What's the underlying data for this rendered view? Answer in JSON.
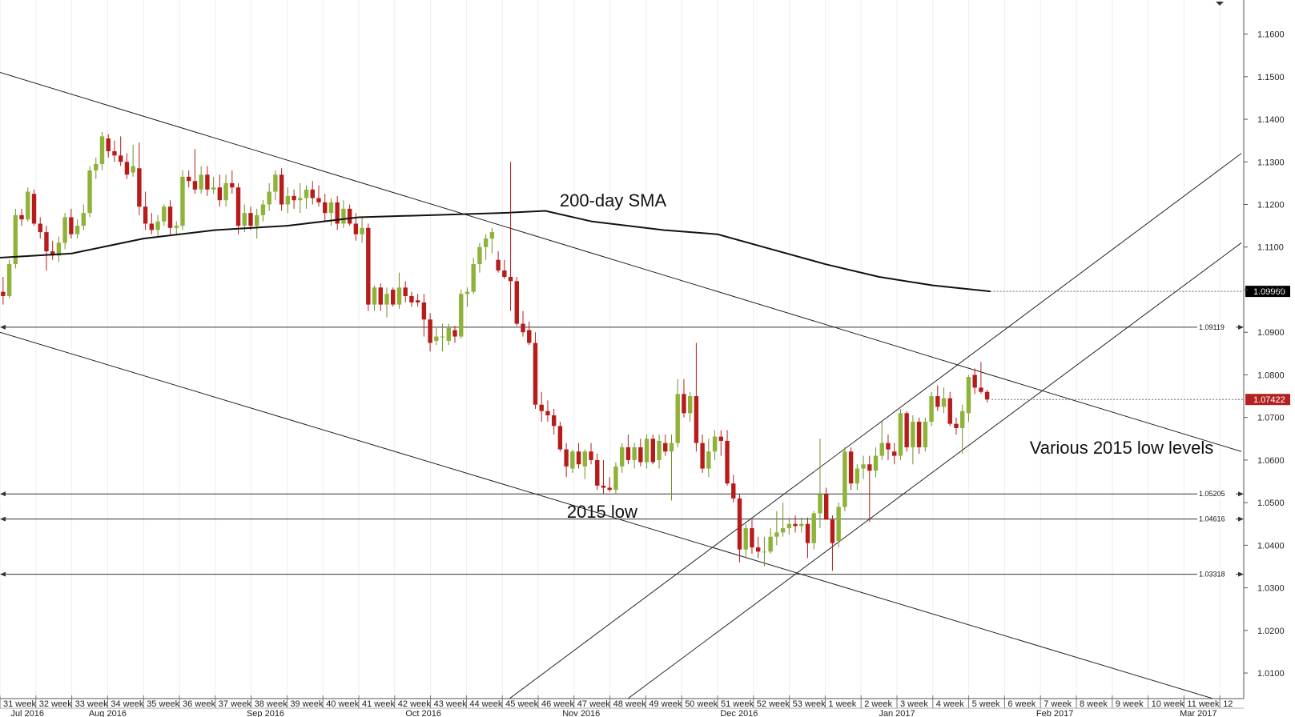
{
  "chart_data": {
    "type": "candlestick",
    "y_ticks": [
      "1.1600",
      "1.1500",
      "1.1400",
      "1.1300",
      "1.1200",
      "1.1100",
      "1.1000",
      "1.0900",
      "1.0800",
      "1.0700",
      "1.0600",
      "1.0500",
      "1.0400",
      "1.0300",
      "1.0200",
      "1.0100"
    ],
    "ylim": [
      1.004,
      1.168
    ],
    "week_labels": [
      "31 week",
      "32 week",
      "33 week",
      "34 week",
      "35 week",
      "36 week",
      "37 week",
      "38 week",
      "39 week",
      "40 week",
      "41 week",
      "42 week",
      "43 week",
      "44 week",
      "45 week",
      "46 week",
      "47 week",
      "48 week",
      "49 week",
      "50 week",
      "51 week",
      "52 week",
      "53 week",
      "1 week",
      "2 week",
      "3 week",
      "4 week",
      "5 week",
      "6 week",
      "7 week",
      "8 week",
      "9 week",
      "10 week",
      "11 week",
      "12"
    ],
    "month_labels": [
      {
        "label": "Jul 2016",
        "week": 0.3
      },
      {
        "label": "Aug 2016",
        "week": 3.0
      },
      {
        "label": "Sep 2016",
        "week": 7.4
      },
      {
        "label": "Oct 2016",
        "week": 11.8
      },
      {
        "label": "Nov 2016",
        "week": 16.2
      },
      {
        "label": "Dec 2016",
        "week": 20.6
      },
      {
        "label": "Jan 2017",
        "week": 25.0
      },
      {
        "label": "Feb 2017",
        "week": 29.4
      },
      {
        "label": "Mar 2017",
        "week": 33.4
      }
    ],
    "annotations": [
      {
        "text": "200-day SMA",
        "week": 15.6,
        "price": 1.1195
      },
      {
        "text": "2015 low",
        "week": 15.8,
        "price": 1.0465
      },
      {
        "text": "Various 2015 low levels",
        "week": 28.7,
        "price": 1.0615
      }
    ],
    "horizontal_levels": [
      {
        "value": 1.09119,
        "label": "1.09119"
      },
      {
        "value": 1.05205,
        "label": "1.05205"
      },
      {
        "value": 1.04616,
        "label": "1.04616"
      },
      {
        "value": 1.03318,
        "label": "1.03318"
      }
    ],
    "price_markers": [
      {
        "value": 1.0996,
        "label": "1.09960",
        "color": "#000000"
      },
      {
        "value": 1.07422,
        "label": "1.07422",
        "color": "#b22222"
      }
    ],
    "trend_lines": [
      {
        "from": [
          0,
          1.151
        ],
        "to": [
          34.6,
          1.062
        ]
      },
      {
        "from": [
          0,
          1.09
        ],
        "to": [
          34.2,
          1.003
        ]
      },
      {
        "from": [
          14.2,
          1.004
        ],
        "to": [
          34.6,
          1.132
        ]
      },
      {
        "from": [
          17.5,
          1.004
        ],
        "to": [
          34.6,
          1.111
        ]
      }
    ],
    "sma_200": [
      {
        "week": 0.0,
        "value": 1.1075
      },
      {
        "week": 2.0,
        "value": 1.1085
      },
      {
        "week": 4.0,
        "value": 1.112
      },
      {
        "week": 6.0,
        "value": 1.114
      },
      {
        "week": 8.0,
        "value": 1.115
      },
      {
        "week": 10.0,
        "value": 1.117
      },
      {
        "week": 12.0,
        "value": 1.1175
      },
      {
        "week": 14.0,
        "value": 1.118
      },
      {
        "week": 15.2,
        "value": 1.1185
      },
      {
        "week": 16.5,
        "value": 1.116
      },
      {
        "week": 18.5,
        "value": 1.114
      },
      {
        "week": 20.0,
        "value": 1.113
      },
      {
        "week": 21.5,
        "value": 1.1095
      },
      {
        "week": 23.0,
        "value": 1.106
      },
      {
        "week": 24.5,
        "value": 1.103
      },
      {
        "week": 26.0,
        "value": 1.101
      },
      {
        "week": 27.6,
        "value": 1.0996
      }
    ],
    "candles": [
      {
        "o": 1.0995,
        "h": 1.103,
        "l": 1.0965,
        "c": 1.0985
      },
      {
        "o": 1.0985,
        "h": 1.107,
        "l": 1.098,
        "c": 1.106
      },
      {
        "o": 1.106,
        "h": 1.119,
        "l": 1.105,
        "c": 1.1175
      },
      {
        "o": 1.1175,
        "h": 1.119,
        "l": 1.115,
        "c": 1.1165
      },
      {
        "o": 1.1165,
        "h": 1.124,
        "l": 1.116,
        "c": 1.123
      },
      {
        "o": 1.1225,
        "h": 1.1235,
        "l": 1.115,
        "c": 1.1155
      },
      {
        "o": 1.1155,
        "h": 1.117,
        "l": 1.112,
        "c": 1.1135
      },
      {
        "o": 1.1135,
        "h": 1.115,
        "l": 1.1045,
        "c": 1.109
      },
      {
        "o": 1.109,
        "h": 1.1115,
        "l": 1.107,
        "c": 1.108
      },
      {
        "o": 1.108,
        "h": 1.1125,
        "l": 1.1065,
        "c": 1.111
      },
      {
        "o": 1.111,
        "h": 1.118,
        "l": 1.1095,
        "c": 1.117
      },
      {
        "o": 1.117,
        "h": 1.119,
        "l": 1.112,
        "c": 1.113
      },
      {
        "o": 1.113,
        "h": 1.1165,
        "l": 1.112,
        "c": 1.115
      },
      {
        "o": 1.115,
        "h": 1.12,
        "l": 1.114,
        "c": 1.118
      },
      {
        "o": 1.118,
        "h": 1.129,
        "l": 1.117,
        "c": 1.128
      },
      {
        "o": 1.128,
        "h": 1.131,
        "l": 1.126,
        "c": 1.1295
      },
      {
        "o": 1.1295,
        "h": 1.137,
        "l": 1.128,
        "c": 1.136
      },
      {
        "o": 1.1355,
        "h": 1.1365,
        "l": 1.131,
        "c": 1.1325
      },
      {
        "o": 1.1325,
        "h": 1.135,
        "l": 1.13,
        "c": 1.1315
      },
      {
        "o": 1.1315,
        "h": 1.136,
        "l": 1.129,
        "c": 1.13
      },
      {
        "o": 1.13,
        "h": 1.132,
        "l": 1.126,
        "c": 1.127
      },
      {
        "o": 1.1275,
        "h": 1.134,
        "l": 1.1265,
        "c": 1.129
      },
      {
        "o": 1.1285,
        "h": 1.1345,
        "l": 1.1175,
        "c": 1.1195
      },
      {
        "o": 1.1195,
        "h": 1.123,
        "l": 1.114,
        "c": 1.1155
      },
      {
        "o": 1.1155,
        "h": 1.118,
        "l": 1.113,
        "c": 1.114
      },
      {
        "o": 1.114,
        "h": 1.1175,
        "l": 1.1125,
        "c": 1.116
      },
      {
        "o": 1.116,
        "h": 1.12,
        "l": 1.115,
        "c": 1.1195
      },
      {
        "o": 1.1195,
        "h": 1.121,
        "l": 1.113,
        "c": 1.1145
      },
      {
        "o": 1.1145,
        "h": 1.116,
        "l": 1.113,
        "c": 1.115
      },
      {
        "o": 1.115,
        "h": 1.128,
        "l": 1.114,
        "c": 1.1265
      },
      {
        "o": 1.1265,
        "h": 1.128,
        "l": 1.124,
        "c": 1.1255
      },
      {
        "o": 1.1255,
        "h": 1.133,
        "l": 1.1225,
        "c": 1.1235
      },
      {
        "o": 1.1235,
        "h": 1.129,
        "l": 1.1225,
        "c": 1.127
      },
      {
        "o": 1.127,
        "h": 1.129,
        "l": 1.122,
        "c": 1.1235
      },
      {
        "o": 1.1235,
        "h": 1.1265,
        "l": 1.1225,
        "c": 1.124
      },
      {
        "o": 1.124,
        "h": 1.127,
        "l": 1.1195,
        "c": 1.121
      },
      {
        "o": 1.121,
        "h": 1.127,
        "l": 1.1195,
        "c": 1.125
      },
      {
        "o": 1.125,
        "h": 1.128,
        "l": 1.1225,
        "c": 1.124
      },
      {
        "o": 1.124,
        "h": 1.125,
        "l": 1.113,
        "c": 1.115
      },
      {
        "o": 1.115,
        "h": 1.12,
        "l": 1.1135,
        "c": 1.118
      },
      {
        "o": 1.118,
        "h": 1.1195,
        "l": 1.114,
        "c": 1.115
      },
      {
        "o": 1.115,
        "h": 1.119,
        "l": 1.112,
        "c": 1.1175
      },
      {
        "o": 1.1175,
        "h": 1.121,
        "l": 1.116,
        "c": 1.12
      },
      {
        "o": 1.12,
        "h": 1.125,
        "l": 1.1185,
        "c": 1.123
      },
      {
        "o": 1.123,
        "h": 1.128,
        "l": 1.121,
        "c": 1.127
      },
      {
        "o": 1.127,
        "h": 1.1285,
        "l": 1.1185,
        "c": 1.12
      },
      {
        "o": 1.12,
        "h": 1.124,
        "l": 1.118,
        "c": 1.122
      },
      {
        "o": 1.122,
        "h": 1.1235,
        "l": 1.119,
        "c": 1.121
      },
      {
        "o": 1.121,
        "h": 1.125,
        "l": 1.118,
        "c": 1.1215
      },
      {
        "o": 1.1215,
        "h": 1.1245,
        "l": 1.119,
        "c": 1.1235
      },
      {
        "o": 1.1235,
        "h": 1.1255,
        "l": 1.12,
        "c": 1.1215
      },
      {
        "o": 1.1215,
        "h": 1.1245,
        "l": 1.1195,
        "c": 1.1205
      },
      {
        "o": 1.1205,
        "h": 1.1225,
        "l": 1.116,
        "c": 1.118
      },
      {
        "o": 1.118,
        "h": 1.1215,
        "l": 1.115,
        "c": 1.1205
      },
      {
        "o": 1.1205,
        "h": 1.122,
        "l": 1.114,
        "c": 1.1155
      },
      {
        "o": 1.1155,
        "h": 1.121,
        "l": 1.1145,
        "c": 1.119
      },
      {
        "o": 1.119,
        "h": 1.12,
        "l": 1.115,
        "c": 1.1155
      },
      {
        "o": 1.1155,
        "h": 1.118,
        "l": 1.1115,
        "c": 1.113
      },
      {
        "o": 1.113,
        "h": 1.117,
        "l": 1.111,
        "c": 1.1145
      },
      {
        "o": 1.1145,
        "h": 1.1155,
        "l": 1.095,
        "c": 1.0965
      },
      {
        "o": 1.0965,
        "h": 1.101,
        "l": 1.095,
        "c": 1.1005
      },
      {
        "o": 1.1005,
        "h": 1.1015,
        "l": 1.095,
        "c": 1.0965
      },
      {
        "o": 1.0965,
        "h": 1.1005,
        "l": 1.0935,
        "c": 1.099
      },
      {
        "o": 1.1,
        "h": 1.1005,
        "l": 1.096,
        "c": 1.0965
      },
      {
        "o": 1.0965,
        "h": 1.104,
        "l": 1.0955,
        "c": 1.1005
      },
      {
        "o": 1.1005,
        "h": 1.102,
        "l": 1.097,
        "c": 1.0985
      },
      {
        "o": 1.0985,
        "h": 1.0995,
        "l": 1.096,
        "c": 1.097
      },
      {
        "o": 1.0975,
        "h": 1.099,
        "l": 1.096,
        "c": 1.097
      },
      {
        "o": 1.097,
        "h": 1.099,
        "l": 1.089,
        "c": 1.093
      },
      {
        "o": 1.093,
        "h": 1.0945,
        "l": 1.0855,
        "c": 1.0875
      },
      {
        "o": 1.088,
        "h": 1.091,
        "l": 1.087,
        "c": 1.089
      },
      {
        "o": 1.089,
        "h": 1.092,
        "l": 1.0855,
        "c": 1.089
      },
      {
        "o": 1.088,
        "h": 1.092,
        "l": 1.087,
        "c": 1.091
      },
      {
        "o": 1.0905,
        "h": 1.0915,
        "l": 1.0875,
        "c": 1.089
      },
      {
        "o": 1.089,
        "h": 1.1,
        "l": 1.0885,
        "c": 1.099
      },
      {
        "o": 1.099,
        "h": 1.1005,
        "l": 1.096,
        "c": 1.0995
      },
      {
        "o": 1.0995,
        "h": 1.1075,
        "l": 1.099,
        "c": 1.106
      },
      {
        "o": 1.106,
        "h": 1.111,
        "l": 1.104,
        "c": 1.11
      },
      {
        "o": 1.11,
        "h": 1.113,
        "l": 1.107,
        "c": 1.112
      },
      {
        "o": 1.112,
        "h": 1.1145,
        "l": 1.1085,
        "c": 1.1135
      },
      {
        "o": 1.107,
        "h": 1.109,
        "l": 1.104,
        "c": 1.1045
      },
      {
        "o": 1.1045,
        "h": 1.107,
        "l": 1.1025,
        "c": 1.103
      },
      {
        "o": 1.103,
        "h": 1.13,
        "l": 1.095,
        "c": 1.102
      },
      {
        "o": 1.102,
        "h": 1.103,
        "l": 1.0915,
        "c": 1.092
      },
      {
        "o": 1.092,
        "h": 1.095,
        "l": 1.089,
        "c": 1.09
      },
      {
        "o": 1.0905,
        "h": 1.0925,
        "l": 1.087,
        "c": 1.0875
      },
      {
        "o": 1.0875,
        "h": 1.09,
        "l": 1.072,
        "c": 1.073
      },
      {
        "o": 1.073,
        "h": 1.076,
        "l": 1.069,
        "c": 1.0715
      },
      {
        "o": 1.0715,
        "h": 1.074,
        "l": 1.069,
        "c": 1.0705
      },
      {
        "o": 1.0705,
        "h": 1.072,
        "l": 1.066,
        "c": 1.068
      },
      {
        "o": 1.068,
        "h": 1.069,
        "l": 1.062,
        "c": 1.0625
      },
      {
        "o": 1.0625,
        "h": 1.064,
        "l": 1.056,
        "c": 1.0585
      },
      {
        "o": 1.058,
        "h": 1.0625,
        "l": 1.057,
        "c": 1.062
      },
      {
        "o": 1.062,
        "h": 1.064,
        "l": 1.058,
        "c": 1.059
      },
      {
        "o": 1.0585,
        "h": 1.0625,
        "l": 1.0555,
        "c": 1.062
      },
      {
        "o": 1.062,
        "h": 1.064,
        "l": 1.059,
        "c": 1.06
      },
      {
        "o": 1.06,
        "h": 1.0615,
        "l": 1.053,
        "c": 1.054
      },
      {
        "o": 1.054,
        "h": 1.06,
        "l": 1.052,
        "c": 1.0535
      },
      {
        "o": 1.0535,
        "h": 1.056,
        "l": 1.0525,
        "c": 1.053
      },
      {
        "o": 1.053,
        "h": 1.0595,
        "l": 1.052,
        "c": 1.0585
      },
      {
        "o": 1.0585,
        "h": 1.064,
        "l": 1.057,
        "c": 1.063
      },
      {
        "o": 1.063,
        "h": 1.066,
        "l": 1.059,
        "c": 1.06
      },
      {
        "o": 1.06,
        "h": 1.064,
        "l": 1.058,
        "c": 1.063
      },
      {
        "o": 1.063,
        "h": 1.065,
        "l": 1.0585,
        "c": 1.0595
      },
      {
        "o": 1.0595,
        "h": 1.066,
        "l": 1.058,
        "c": 1.065
      },
      {
        "o": 1.065,
        "h": 1.066,
        "l": 1.059,
        "c": 1.0595
      },
      {
        "o": 1.06,
        "h": 1.066,
        "l": 1.058,
        "c": 1.0645
      },
      {
        "o": 1.064,
        "h": 1.066,
        "l": 1.061,
        "c": 1.062
      },
      {
        "o": 1.062,
        "h": 1.066,
        "l": 1.0505,
        "c": 1.064
      },
      {
        "o": 1.064,
        "h": 1.079,
        "l": 1.063,
        "c": 1.0755
      },
      {
        "o": 1.0755,
        "h": 1.079,
        "l": 1.07,
        "c": 1.071
      },
      {
        "o": 1.071,
        "h": 1.076,
        "l": 1.069,
        "c": 1.075
      },
      {
        "o": 1.075,
        "h": 1.0875,
        "l": 1.062,
        "c": 1.064
      },
      {
        "o": 1.064,
        "h": 1.066,
        "l": 1.057,
        "c": 1.058
      },
      {
        "o": 1.058,
        "h": 1.065,
        "l": 1.056,
        "c": 1.062
      },
      {
        "o": 1.062,
        "h": 1.067,
        "l": 1.06,
        "c": 1.0655
      },
      {
        "o": 1.0655,
        "h": 1.067,
        "l": 1.061,
        "c": 1.0645
      },
      {
        "o": 1.0645,
        "h": 1.067,
        "l": 1.054,
        "c": 1.0545
      },
      {
        "o": 1.0545,
        "h": 1.0565,
        "l": 1.05,
        "c": 1.051
      },
      {
        "o": 1.051,
        "h": 1.052,
        "l": 1.036,
        "c": 1.039
      },
      {
        "o": 1.039,
        "h": 1.045,
        "l": 1.037,
        "c": 1.044
      },
      {
        "o": 1.044,
        "h": 1.046,
        "l": 1.038,
        "c": 1.0395
      },
      {
        "o": 1.0395,
        "h": 1.042,
        "l": 1.037,
        "c": 1.0385
      },
      {
        "o": 1.0385,
        "h": 1.042,
        "l": 1.035,
        "c": 1.0385
      },
      {
        "o": 1.0385,
        "h": 1.044,
        "l": 1.038,
        "c": 1.042
      },
      {
        "o": 1.042,
        "h": 1.048,
        "l": 1.04,
        "c": 1.043
      },
      {
        "o": 1.043,
        "h": 1.05,
        "l": 1.042,
        "c": 1.044
      },
      {
        "o": 1.044,
        "h": 1.0465,
        "l": 1.0425,
        "c": 1.045
      },
      {
        "o": 1.045,
        "h": 1.047,
        "l": 1.043,
        "c": 1.0445
      },
      {
        "o": 1.0445,
        "h": 1.0465,
        "l": 1.043,
        "c": 1.045
      },
      {
        "o": 1.045,
        "h": 1.0465,
        "l": 1.037,
        "c": 1.0405
      },
      {
        "o": 1.0405,
        "h": 1.048,
        "l": 1.039,
        "c": 1.0475
      },
      {
        "o": 1.0475,
        "h": 1.065,
        "l": 1.044,
        "c": 1.052
      },
      {
        "o": 1.052,
        "h": 1.0535,
        "l": 1.046,
        "c": 1.046
      },
      {
        "o": 1.046,
        "h": 1.047,
        "l": 1.034,
        "c": 1.0405
      },
      {
        "o": 1.041,
        "h": 1.05,
        "l": 1.0395,
        "c": 1.049
      },
      {
        "o": 1.049,
        "h": 1.063,
        "l": 1.048,
        "c": 1.062
      },
      {
        "o": 1.062,
        "h": 1.063,
        "l": 1.053,
        "c": 1.0545
      },
      {
        "o": 1.0545,
        "h": 1.059,
        "l": 1.053,
        "c": 1.058
      },
      {
        "o": 1.058,
        "h": 1.061,
        "l": 1.0555,
        "c": 1.059
      },
      {
        "o": 1.059,
        "h": 1.061,
        "l": 1.0455,
        "c": 1.0575
      },
      {
        "o": 1.0575,
        "h": 1.063,
        "l": 1.056,
        "c": 1.061
      },
      {
        "o": 1.061,
        "h": 1.069,
        "l": 1.06,
        "c": 1.064
      },
      {
        "o": 1.064,
        "h": 1.066,
        "l": 1.06,
        "c": 1.0625
      },
      {
        "o": 1.062,
        "h": 1.064,
        "l": 1.059,
        "c": 1.061
      },
      {
        "o": 1.061,
        "h": 1.072,
        "l": 1.06,
        "c": 1.071
      },
      {
        "o": 1.071,
        "h": 1.0715,
        "l": 1.062,
        "c": 1.063
      },
      {
        "o": 1.063,
        "h": 1.0705,
        "l": 1.059,
        "c": 1.069
      },
      {
        "o": 1.069,
        "h": 1.07,
        "l": 1.0615,
        "c": 1.063
      },
      {
        "o": 1.063,
        "h": 1.07,
        "l": 1.062,
        "c": 1.069
      },
      {
        "o": 1.069,
        "h": 1.076,
        "l": 1.068,
        "c": 1.075
      },
      {
        "o": 1.075,
        "h": 1.0775,
        "l": 1.0715,
        "c": 1.0725
      },
      {
        "o": 1.0725,
        "h": 1.077,
        "l": 1.071,
        "c": 1.0745
      },
      {
        "o": 1.0745,
        "h": 1.076,
        "l": 1.068,
        "c": 1.0685
      },
      {
        "o": 1.0685,
        "h": 1.07,
        "l": 1.066,
        "c": 1.0675
      },
      {
        "o": 1.0675,
        "h": 1.073,
        "l": 1.0615,
        "c": 1.0715
      },
      {
        "o": 1.071,
        "h": 1.08,
        "l": 1.069,
        "c": 1.0795
      },
      {
        "o": 1.08,
        "h": 1.0815,
        "l": 1.0755,
        "c": 1.077
      },
      {
        "o": 1.077,
        "h": 1.083,
        "l": 1.0755,
        "c": 1.076
      },
      {
        "o": 1.076,
        "h": 1.0765,
        "l": 1.0735,
        "c": 1.0742
      }
    ]
  }
}
